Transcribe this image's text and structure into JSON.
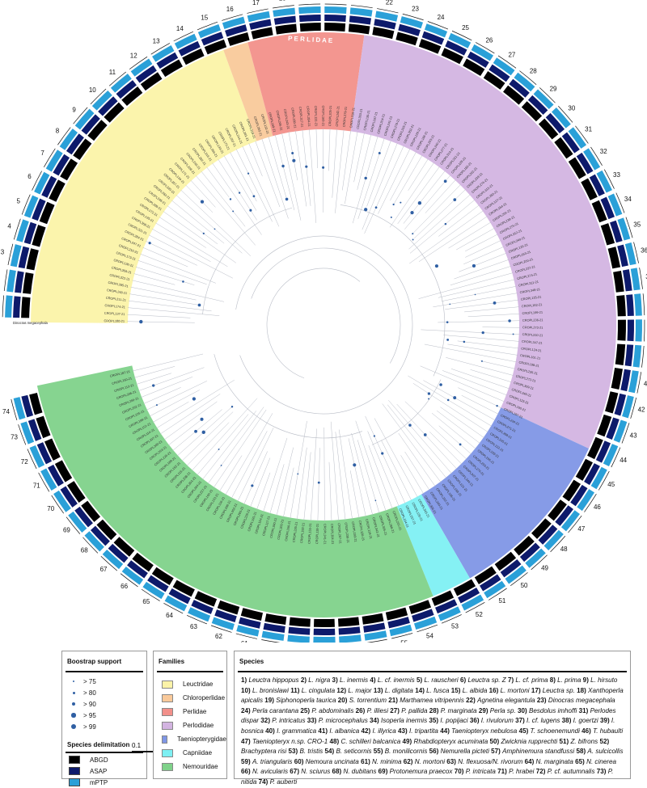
{
  "families": [
    {
      "name": "Leuctridae",
      "color": "#fbf3a8"
    },
    {
      "name": "Chloroperlidae",
      "color": "#f9c99a"
    },
    {
      "name": "Perlidae",
      "color": "#f2908a"
    },
    {
      "name": "Perlodidae",
      "color": "#d3b4e1"
    },
    {
      "name": "Taeniopterygidae",
      "color": "#7f96e6"
    },
    {
      "name": "Capniidae",
      "color": "#7ef0f3"
    },
    {
      "name": "Nemouridae",
      "color": "#7fd28a"
    }
  ],
  "family_band_label": "P E R L I D A E",
  "outgroup_label": "Dinocras megacephala",
  "scale_bar_label": "0.1",
  "bootstrap": {
    "title": "Boostrap support",
    "levels": [
      "> 75",
      "> 80",
      "> 90",
      "> 95",
      "> 99"
    ]
  },
  "delimitation": {
    "title": "Species delimitation",
    "methods": [
      {
        "name": "ABGD",
        "color": "#000000"
      },
      {
        "name": "ASAP",
        "color": "#0d1a6b"
      },
      {
        "name": "mPTP",
        "color": "#2aa0d8"
      }
    ]
  },
  "families_title": "Families",
  "species_title": "Species",
  "species_list": [
    {
      "n": "1",
      "name": "Leuctra hippopus"
    },
    {
      "n": "2",
      "name": "L. nigra"
    },
    {
      "n": "3",
      "name": "L. inermis"
    },
    {
      "n": "4",
      "name": "L. cf. inermis"
    },
    {
      "n": "5",
      "name": "L. rauscheri"
    },
    {
      "n": "6",
      "name": "Leuctra sp. Z"
    },
    {
      "n": "7",
      "name": "L. cf. prima"
    },
    {
      "n": "8",
      "name": "L. prima"
    },
    {
      "n": "9",
      "name": "L. hirsuto"
    },
    {
      "n": "10",
      "name": "L. bronislawi"
    },
    {
      "n": "11",
      "name": "L. cingulata"
    },
    {
      "n": "12",
      "name": "L. major"
    },
    {
      "n": "13",
      "name": "L. digitata"
    },
    {
      "n": "14",
      "name": "L. fusca"
    },
    {
      "n": "15",
      "name": "L. albida"
    },
    {
      "n": "16",
      "name": "L. mortoni"
    },
    {
      "n": "17",
      "name": "Leuctra sp."
    },
    {
      "n": "18",
      "name": "Xanthoperla apicalis"
    },
    {
      "n": "19",
      "name": "Siphonoperla taurica"
    },
    {
      "n": "20",
      "name": "S. torrentium"
    },
    {
      "n": "21",
      "name": "Marthamea vitripennis"
    },
    {
      "n": "22",
      "name": "Agnetina elegantula"
    },
    {
      "n": "23",
      "name": "Dinocras megacephala"
    },
    {
      "n": "24",
      "name": "Perla carantana"
    },
    {
      "n": "25",
      "name": "P. abdominalis"
    },
    {
      "n": "26",
      "name": "P. illiesi"
    },
    {
      "n": "27",
      "name": "P. pallida"
    },
    {
      "n": "28",
      "name": "P. marginata"
    },
    {
      "n": "29",
      "name": "Perla sp."
    },
    {
      "n": "30",
      "name": "Besdolus imhoffi"
    },
    {
      "n": "31",
      "name": "Perlodes dispar"
    },
    {
      "n": "32",
      "name": "P. intricatus"
    },
    {
      "n": "33",
      "name": "P. microcephalus"
    },
    {
      "n": "34",
      "name": "Isoperla inermis"
    },
    {
      "n": "35",
      "name": "I. popijaci"
    },
    {
      "n": "36",
      "name": "I. rivulorum"
    },
    {
      "n": "37",
      "name": "I. cf. lugens"
    },
    {
      "n": "38",
      "name": "I. goertzi"
    },
    {
      "n": "39",
      "name": "I. bosnica"
    },
    {
      "n": "40",
      "name": "I. grammatica"
    },
    {
      "n": "41",
      "name": "I. albanica"
    },
    {
      "n": "42",
      "name": "I. illyrica"
    },
    {
      "n": "43",
      "name": "I. tripartita"
    },
    {
      "n": "44",
      "name": "Taeniopteryx nebulosa"
    },
    {
      "n": "45",
      "name": "T. schoenemundi"
    },
    {
      "n": "46",
      "name": "T. hubaulti"
    },
    {
      "n": "47",
      "name": "Taeniopteryx n.sp. CRO-1"
    },
    {
      "n": "48",
      "name": "C. schilleri balcanica"
    },
    {
      "n": "49",
      "name": "Rhabdiopteryx acuminata"
    },
    {
      "n": "50",
      "name": "Zwicknia rupprechti"
    },
    {
      "n": "51",
      "name": "Z. bifrons"
    },
    {
      "n": "52",
      "name": "Brachyptera risi"
    },
    {
      "n": "53",
      "name": "B. tristis"
    },
    {
      "n": "54",
      "name": "B. seticornis"
    },
    {
      "n": "55",
      "name": "B. monilicornis"
    },
    {
      "n": "56",
      "name": "Nemurella picteti"
    },
    {
      "n": "57",
      "name": "Amphinemura standfussi"
    },
    {
      "n": "58",
      "name": "A. sulcicollis"
    },
    {
      "n": "59",
      "name": "A. triangularis"
    },
    {
      "n": "60",
      "name": "Nemoura uncinata"
    },
    {
      "n": "61",
      "name": "N. minima"
    },
    {
      "n": "62",
      "name": "N. mortoni"
    },
    {
      "n": "63",
      "name": "N. flexuosa/N. rivorum"
    },
    {
      "n": "64",
      "name": "N. marginata"
    },
    {
      "n": "65",
      "name": "N. cinerea"
    },
    {
      "n": "66",
      "name": "N. avicularis"
    },
    {
      "n": "67",
      "name": "N. sciurus"
    },
    {
      "n": "68",
      "name": "N. dubitans"
    },
    {
      "n": "69",
      "name": "Protonemura praecox"
    },
    {
      "n": "70",
      "name": "P. intricata"
    },
    {
      "n": "71",
      "name": "P. hrabei"
    },
    {
      "n": "72",
      "name": "P. cf. autumnalis"
    },
    {
      "n": "73",
      "name": "P. nitida"
    },
    {
      "n": "74",
      "name": "P. auberti"
    }
  ]
}
